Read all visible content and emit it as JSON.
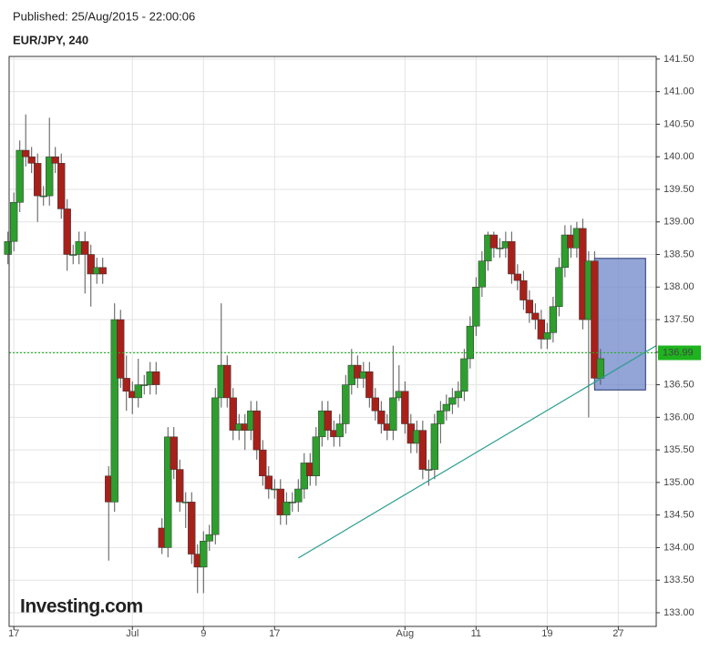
{
  "chart_data": {
    "type": "candlestick",
    "published": "Published: 25/Aug/2015 - 22:00:06",
    "title": "EUR/JPY, 240",
    "logo": "Investing.com",
    "xlim": [
      -0.4,
      54.2
    ],
    "xticks": [
      {
        "value": 0,
        "label": "17"
      },
      {
        "value": 10,
        "label": "Jul"
      },
      {
        "value": 16,
        "label": "9"
      },
      {
        "value": 22,
        "label": "17"
      },
      {
        "value": 33,
        "label": "Aug"
      },
      {
        "value": 39,
        "label": "11"
      },
      {
        "value": 45,
        "label": "19"
      },
      {
        "value": 51,
        "label": "27"
      }
    ],
    "ylim": [
      132.79,
      141.54
    ],
    "yticks": [
      {
        "value": 133,
        "label": "133.00"
      },
      {
        "value": 133.5,
        "label": "133.50"
      },
      {
        "value": 134,
        "label": "134.00"
      },
      {
        "value": 134.5,
        "label": "134.50"
      },
      {
        "value": 135,
        "label": "135.00"
      },
      {
        "value": 135.5,
        "label": "135.50"
      },
      {
        "value": 136,
        "label": "136.00"
      },
      {
        "value": 136.5,
        "label": "136.50"
      },
      {
        "value": 137,
        "label": "137.00"
      },
      {
        "value": 137.5,
        "label": "137.50"
      },
      {
        "value": 138,
        "label": "138.00"
      },
      {
        "value": 138.5,
        "label": "138.50"
      },
      {
        "value": 139,
        "label": "139.00"
      },
      {
        "value": 139.5,
        "label": "139.50"
      },
      {
        "value": 140,
        "label": "140.00"
      },
      {
        "value": 140.5,
        "label": "140.50"
      },
      {
        "value": 141,
        "label": "141.00"
      },
      {
        "value": 141.5,
        "label": "141.50"
      }
    ],
    "grid": true,
    "up_color": "#2e9e2e",
    "down_color": "#a8201a",
    "current_price": {
      "value": 136.99,
      "label": "136.99"
    },
    "current_price_color": "#1db41d",
    "trendline": {
      "x": [
        24,
        54.2
      ],
      "y": [
        133.84,
        137.1
      ],
      "color": "#2a9d8f"
    },
    "box": {
      "x": [
        49,
        53.3
      ],
      "y": [
        136.42,
        138.44
      ],
      "color": "#6f86c9"
    },
    "x": [
      -0.5,
      0,
      0.5,
      1,
      1.5,
      2,
      2.5,
      3,
      3.5,
      4,
      4.5,
      5,
      5.5,
      6,
      6.5,
      7,
      7.5,
      8,
      8.5,
      9,
      9.5,
      10,
      10.5,
      11,
      11.5,
      12,
      12.5,
      13,
      13.5,
      14,
      14.5,
      15,
      15.5,
      16,
      16.5,
      17,
      17.5,
      18,
      18.5,
      19,
      19.5,
      20,
      20.5,
      21,
      21.5,
      22,
      22.5,
      23,
      23.5,
      24,
      24.5,
      25,
      25.5,
      26,
      26.5,
      27,
      27.5,
      28,
      28.5,
      29,
      29.5,
      30,
      30.5,
      31,
      31.5,
      32,
      32.5,
      33,
      33.5,
      34,
      34.5,
      35,
      35.5,
      36,
      36.5,
      37,
      37.5,
      38,
      38.5,
      39,
      39.5,
      40,
      40.5,
      41,
      41.5,
      42,
      42.5,
      43,
      43.5,
      44,
      44.5,
      45,
      45.5,
      46,
      46.5,
      47,
      47.5,
      48,
      48.5,
      49,
      49.5
    ],
    "open": [
      138.5,
      138.7,
      139.3,
      140.1,
      140.0,
      139.9,
      139.4,
      139.4,
      140.0,
      139.9,
      139.2,
      138.5,
      138.5,
      138.7,
      138.5,
      138.2,
      138.3,
      135.1,
      134.7,
      137.5,
      136.6,
      136.4,
      136.3,
      136.5,
      136.5,
      136.7,
      134.3,
      134.0,
      135.7,
      135.2,
      134.7,
      134.7,
      133.9,
      133.7,
      134.1,
      134.2,
      136.3,
      136.8,
      136.3,
      135.8,
      135.9,
      135.8,
      136.1,
      135.5,
      135.1,
      134.9,
      134.9,
      134.5,
      134.7,
      134.7,
      134.9,
      135.3,
      135.1,
      135.7,
      136.1,
      135.8,
      135.7,
      135.9,
      136.5,
      136.8,
      136.6,
      136.7,
      136.3,
      136.1,
      135.9,
      135.8,
      136.3,
      136.4,
      135.9,
      135.6,
      135.8,
      135.2,
      135.2,
      135.9,
      136.1,
      136.2,
      136.3,
      136.4,
      136.9,
      137.4,
      138.0,
      138.4,
      138.8,
      138.6,
      138.6,
      138.7,
      138.2,
      138.1,
      137.8,
      137.6,
      137.5,
      137.2,
      137.3,
      137.7,
      138.3,
      138.8,
      138.6,
      138.9,
      137.5,
      138.4,
      136.6
    ],
    "high": [
      138.85,
      139.45,
      140.25,
      140.65,
      140.15,
      140.05,
      139.55,
      140.6,
      140.15,
      140.05,
      139.35,
      138.65,
      138.85,
      138.85,
      138.65,
      138.45,
      138.45,
      135.25,
      137.75,
      137.65,
      136.95,
      136.55,
      136.9,
      136.65,
      136.85,
      136.85,
      134.45,
      135.85,
      135.85,
      135.35,
      134.85,
      134.85,
      134.05,
      134.25,
      134.35,
      136.45,
      137.75,
      136.95,
      136.45,
      136.05,
      136.05,
      136.25,
      136.25,
      135.65,
      135.25,
      135.05,
      135.05,
      134.85,
      134.85,
      135.05,
      135.45,
      135.45,
      135.85,
      136.25,
      136.25,
      135.95,
      136.05,
      136.65,
      137.05,
      136.95,
      136.85,
      136.85,
      136.45,
      136.25,
      136.05,
      137.1,
      136.8,
      136.55,
      136.05,
      135.95,
      135.95,
      135.35,
      136.05,
      136.25,
      136.35,
      136.45,
      136.55,
      137.05,
      137.55,
      138.15,
      138.55,
      138.85,
      138.85,
      138.75,
      138.85,
      138.85,
      138.35,
      138.25,
      137.95,
      137.75,
      137.65,
      137.45,
      137.85,
      138.45,
      138.95,
      138.95,
      139.0,
      139.05,
      138.55,
      138.55,
      137.05
    ],
    "low": [
      138.35,
      138.55,
      139.15,
      139.85,
      139.75,
      139.0,
      139.25,
      139.25,
      139.75,
      139.05,
      138.25,
      138.35,
      138.35,
      137.9,
      137.7,
      138.05,
      138.05,
      133.8,
      134.55,
      136.45,
      136.1,
      136.05,
      136.15,
      136.35,
      136.35,
      136.35,
      133.9,
      133.85,
      135.05,
      134.55,
      134.3,
      133.75,
      133.3,
      133.3,
      133.95,
      134.05,
      136.15,
      136.15,
      135.65,
      135.65,
      135.5,
      135.65,
      135.35,
      134.95,
      134.75,
      134.75,
      134.35,
      134.35,
      134.55,
      134.55,
      134.75,
      134.95,
      134.95,
      135.55,
      135.65,
      135.55,
      135.55,
      135.75,
      136.35,
      136.45,
      136.45,
      136.15,
      135.95,
      135.75,
      135.65,
      135.65,
      136.25,
      135.75,
      135.45,
      135.45,
      135.05,
      134.95,
      135.05,
      135.6,
      135.95,
      136.05,
      136.15,
      136.25,
      136.75,
      137.25,
      137.85,
      138.25,
      138.45,
      138.45,
      138.45,
      138.05,
      137.95,
      137.65,
      137.45,
      137.35,
      137.05,
      137.05,
      137.15,
      137.55,
      138.15,
      138.45,
      138.45,
      137.35,
      136.0,
      136.45,
      136.5
    ],
    "close": [
      138.7,
      139.3,
      140.1,
      140.0,
      139.9,
      139.4,
      139.4,
      140.0,
      139.9,
      139.2,
      138.5,
      138.5,
      138.7,
      138.5,
      138.2,
      138.3,
      138.2,
      134.7,
      137.5,
      136.6,
      136.4,
      136.3,
      136.5,
      136.5,
      136.7,
      136.5,
      134.0,
      135.7,
      135.2,
      134.7,
      134.7,
      133.9,
      133.7,
      134.1,
      134.2,
      136.3,
      136.8,
      136.3,
      135.8,
      135.9,
      135.8,
      136.1,
      135.5,
      135.1,
      134.9,
      134.9,
      134.5,
      134.7,
      134.7,
      134.9,
      135.3,
      135.1,
      135.7,
      136.1,
      135.8,
      135.7,
      135.9,
      136.5,
      136.8,
      136.6,
      136.7,
      136.3,
      136.1,
      135.9,
      135.8,
      136.3,
      136.4,
      135.9,
      135.6,
      135.8,
      135.2,
      135.2,
      135.9,
      136.1,
      136.2,
      136.3,
      136.4,
      136.9,
      137.4,
      138.0,
      138.4,
      138.8,
      138.6,
      138.6,
      138.7,
      138.2,
      138.1,
      137.8,
      137.6,
      137.5,
      137.2,
      137.3,
      137.7,
      138.3,
      138.8,
      138.6,
      138.9,
      137.5,
      138.4,
      136.6,
      136.9
    ]
  }
}
